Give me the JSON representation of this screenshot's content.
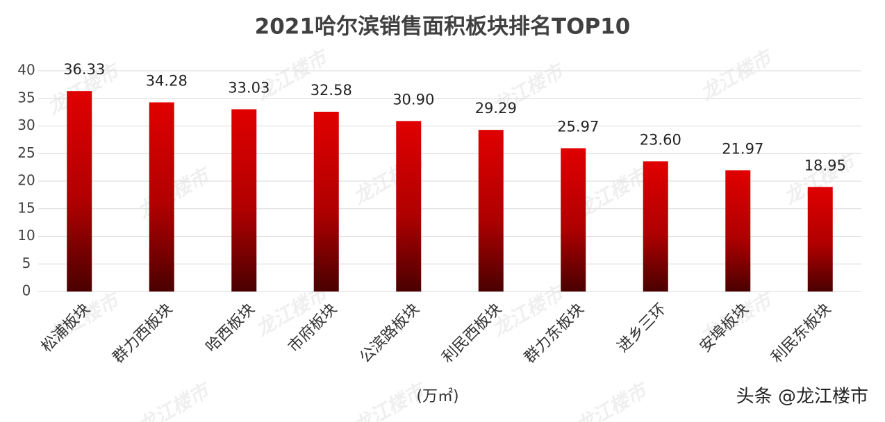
{
  "chart_data": {
    "type": "bar",
    "title": "2021哈尔滨销售面积板块排名TOP10",
    "categories": [
      "松浦板块",
      "群力西板块",
      "哈西板块",
      "市府板块",
      "公滨路板块",
      "利民西板块",
      "群力东板块",
      "进乡三环",
      "安埠板块",
      "利民东板块"
    ],
    "values": [
      36.33,
      34.28,
      33.03,
      32.58,
      30.9,
      29.29,
      25.97,
      23.6,
      21.97,
      18.95
    ],
    "value_labels": [
      "36.33",
      "34.28",
      "33.03",
      "32.58",
      "30.90",
      "29.29",
      "25.97",
      "23.60",
      "21.97",
      "18.95"
    ],
    "color": "#e00000",
    "ylim": [
      0,
      40
    ],
    "yticks": [
      0,
      5,
      10,
      15,
      20,
      25,
      30,
      35,
      40
    ],
    "grid": true,
    "unit_label": "(万㎡)",
    "watermark": "龙江楼市",
    "credit": "头条 @龙江楼市"
  }
}
